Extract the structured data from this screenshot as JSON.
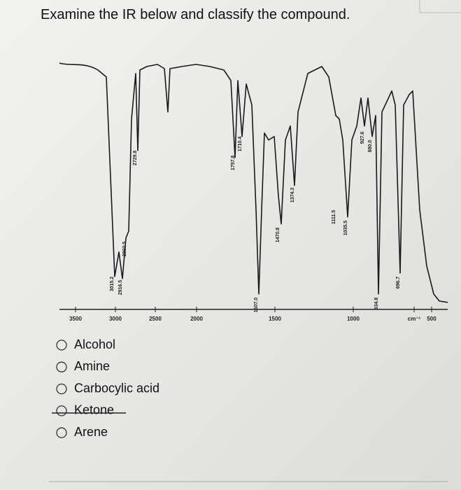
{
  "question": "Examine the IR below and classify the compound.",
  "spectrum": {
    "axis_labels": [
      "3500",
      "3000",
      "2500",
      "2000",
      "1500",
      "1000",
      "cm⁻¹",
      "500"
    ],
    "peak_labels": [
      "3015.2",
      "2916.5",
      "2860.5",
      "2729.8",
      "1757.8",
      "1710.4",
      "1607.0",
      "1470.8",
      "1374.3",
      "1111.5",
      "1035.5",
      "927.6",
      "880.0",
      "834.8",
      "696.7"
    ]
  },
  "options": [
    "Alcohol",
    "Amine",
    "Carbocylic acid",
    "Ketone",
    "Arene"
  ]
}
